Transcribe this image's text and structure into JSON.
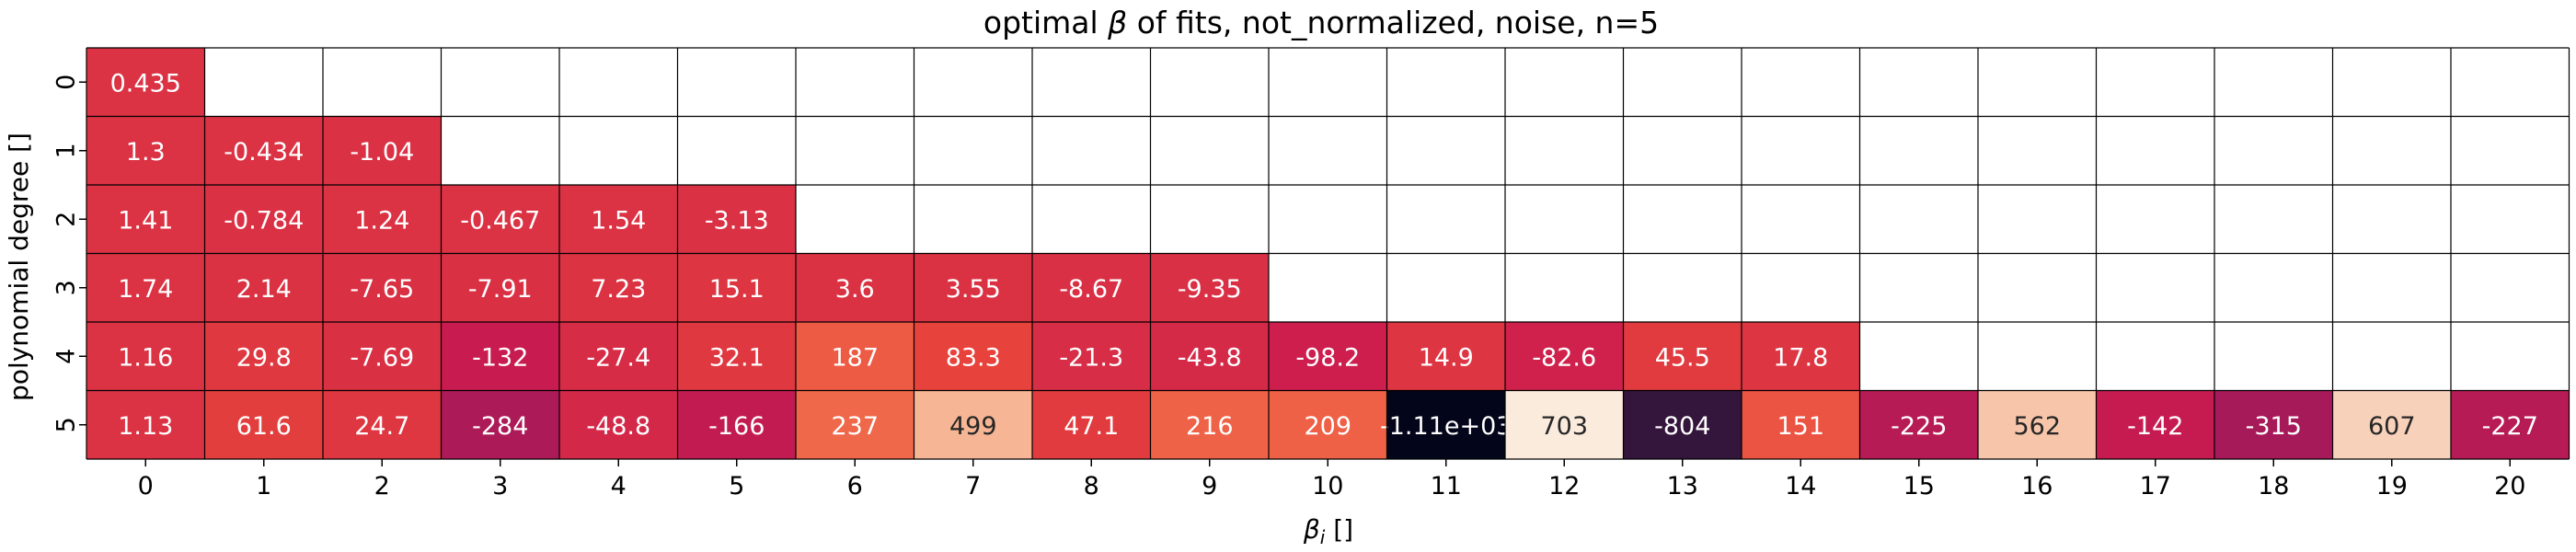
{
  "chart_data": {
    "type": "heatmap",
    "title_prefix": "optimal ",
    "title_symbol": "β",
    "title_suffix": " of fits, not_normalized, noise, n=5",
    "xlabel_symbol": "β",
    "xlabel_sub": "i",
    "xlabel_unit": " []",
    "ylabel": "polynomial degree []",
    "x_ticks": [
      "0",
      "1",
      "2",
      "3",
      "4",
      "5",
      "6",
      "7",
      "8",
      "9",
      "10",
      "11",
      "12",
      "13",
      "14",
      "15",
      "16",
      "17",
      "18",
      "19",
      "20"
    ],
    "y_ticks": [
      "0",
      "1",
      "2",
      "3",
      "4",
      "5"
    ],
    "colormap": "rocket",
    "color_range": [
      -1110,
      703
    ],
    "grid": true,
    "colorbar": false,
    "values": [
      [
        0.435
      ],
      [
        1.3,
        -0.434,
        -1.04
      ],
      [
        1.41,
        -0.784,
        1.24,
        -0.467,
        1.54,
        -3.13
      ],
      [
        1.74,
        2.14,
        -7.65,
        -7.91,
        7.23,
        15.1,
        3.6,
        3.55,
        -8.67,
        -9.35
      ],
      [
        1.16,
        29.8,
        -7.69,
        -132,
        -27.4,
        32.1,
        187,
        83.3,
        -21.3,
        -43.8,
        -98.2,
        14.9,
        -82.6,
        45.5,
        17.8
      ],
      [
        1.13,
        61.6,
        24.7,
        -284,
        -48.8,
        -166,
        237,
        499,
        47.1,
        216,
        209,
        -1110,
        703,
        -804,
        151,
        -225,
        562,
        -142,
        -315,
        607,
        -227
      ]
    ],
    "labels": [
      [
        "0.435"
      ],
      [
        "1.3",
        "-0.434",
        "-1.04"
      ],
      [
        "1.41",
        "-0.784",
        "1.24",
        "-0.467",
        "1.54",
        "-3.13"
      ],
      [
        "1.74",
        "2.14",
        "-7.65",
        "-7.91",
        "7.23",
        "15.1",
        "3.6",
        "3.55",
        "-8.67",
        "-9.35"
      ],
      [
        "1.16",
        "29.8",
        "-7.69",
        "-132",
        "-27.4",
        "32.1",
        "187",
        "83.3",
        "-21.3",
        "-43.8",
        "-98.2",
        "14.9",
        "-82.6",
        "45.5",
        "17.8"
      ],
      [
        "1.13",
        "61.6",
        "24.7",
        "-284",
        "-48.8",
        "-166",
        "237",
        "499",
        "47.1",
        "216",
        "209",
        "-1.11e+03",
        "703",
        "-804",
        "151",
        "-225",
        "562",
        "-142",
        "-315",
        "607",
        "-227"
      ]
    ]
  }
}
